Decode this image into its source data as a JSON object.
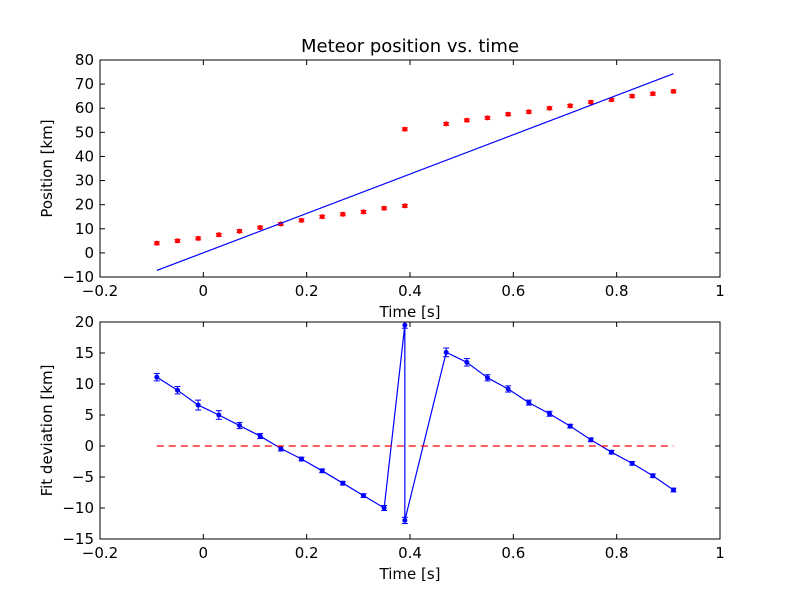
{
  "chart_data": [
    {
      "type": "scatter",
      "title": "Meteor position vs. time",
      "xlabel": "Time [s]",
      "ylabel": "Position [km]",
      "xlim": [
        -0.2,
        1.0
      ],
      "ylim": [
        -10,
        80
      ],
      "xticks": [
        -0.2,
        0.0,
        0.2,
        0.4,
        0.6,
        0.8,
        1.0
      ],
      "yticks": [
        -10,
        0,
        10,
        20,
        30,
        40,
        50,
        60,
        70,
        80
      ],
      "grid": false,
      "series": [
        {
          "kind": "points-with-errorbars",
          "color": "#ff0000",
          "x": [
            -0.09,
            -0.05,
            -0.01,
            0.03,
            0.07,
            0.11,
            0.15,
            0.19,
            0.23,
            0.27,
            0.31,
            0.35,
            0.39,
            0.39,
            0.47,
            0.51,
            0.55,
            0.59,
            0.63,
            0.67,
            0.71,
            0.75,
            0.79,
            0.83,
            0.87,
            0.91
          ],
          "y": [
            4.0,
            5.0,
            6.0,
            7.5,
            9.0,
            10.5,
            12.0,
            13.5,
            15.0,
            16.0,
            17.0,
            18.5,
            19.5,
            51.3,
            53.5,
            55.0,
            56.0,
            57.5,
            58.5,
            60.0,
            61.0,
            62.5,
            63.5,
            65.0,
            66.0,
            67.0
          ],
          "yerr": 0.6
        },
        {
          "kind": "line",
          "color": "#0000ff",
          "x": [
            -0.09,
            0.91
          ],
          "y": [
            -7.3,
            74.3
          ]
        }
      ]
    },
    {
      "type": "line",
      "title": "",
      "xlabel": "Time [s]",
      "ylabel": "Fit deviation [km]",
      "xlim": [
        -0.2,
        1.0
      ],
      "ylim": [
        -15,
        20
      ],
      "xticks": [
        -0.2,
        0.0,
        0.2,
        0.4,
        0.6,
        0.8,
        1.0
      ],
      "yticks": [
        -15,
        -10,
        -5,
        0,
        5,
        10,
        15,
        20
      ],
      "grid": false,
      "series": [
        {
          "kind": "line-with-errorbars",
          "color": "#0000ff",
          "x": [
            -0.09,
            -0.05,
            -0.01,
            0.03,
            0.07,
            0.11,
            0.15,
            0.19,
            0.23,
            0.27,
            0.31,
            0.35,
            0.39,
            0.39,
            0.47,
            0.51,
            0.55,
            0.59,
            0.63,
            0.67,
            0.71,
            0.75,
            0.79,
            0.83,
            0.87,
            0.91
          ],
          "y": [
            11.1,
            9.0,
            6.6,
            5.0,
            3.3,
            1.6,
            -0.4,
            -2.1,
            -4.0,
            -6.0,
            -8.0,
            -10.0,
            19.5,
            -12.0,
            15.1,
            13.5,
            11.0,
            9.2,
            7.0,
            5.2,
            3.2,
            1.0,
            -1.0,
            -2.8,
            -4.8,
            -7.1
          ],
          "yerr": [
            0.6,
            0.6,
            0.8,
            0.7,
            0.5,
            0.4,
            0.4,
            0.3,
            0.3,
            0.3,
            0.3,
            0.4,
            0.5,
            0.5,
            0.7,
            0.6,
            0.5,
            0.5,
            0.4,
            0.4,
            0.3,
            0.3,
            0.3,
            0.3,
            0.3,
            0.3
          ]
        },
        {
          "kind": "reference-line",
          "style": "dashed",
          "color": "#ff0000",
          "x": [
            -0.09,
            0.91
          ],
          "y": [
            0,
            0
          ]
        }
      ]
    }
  ]
}
